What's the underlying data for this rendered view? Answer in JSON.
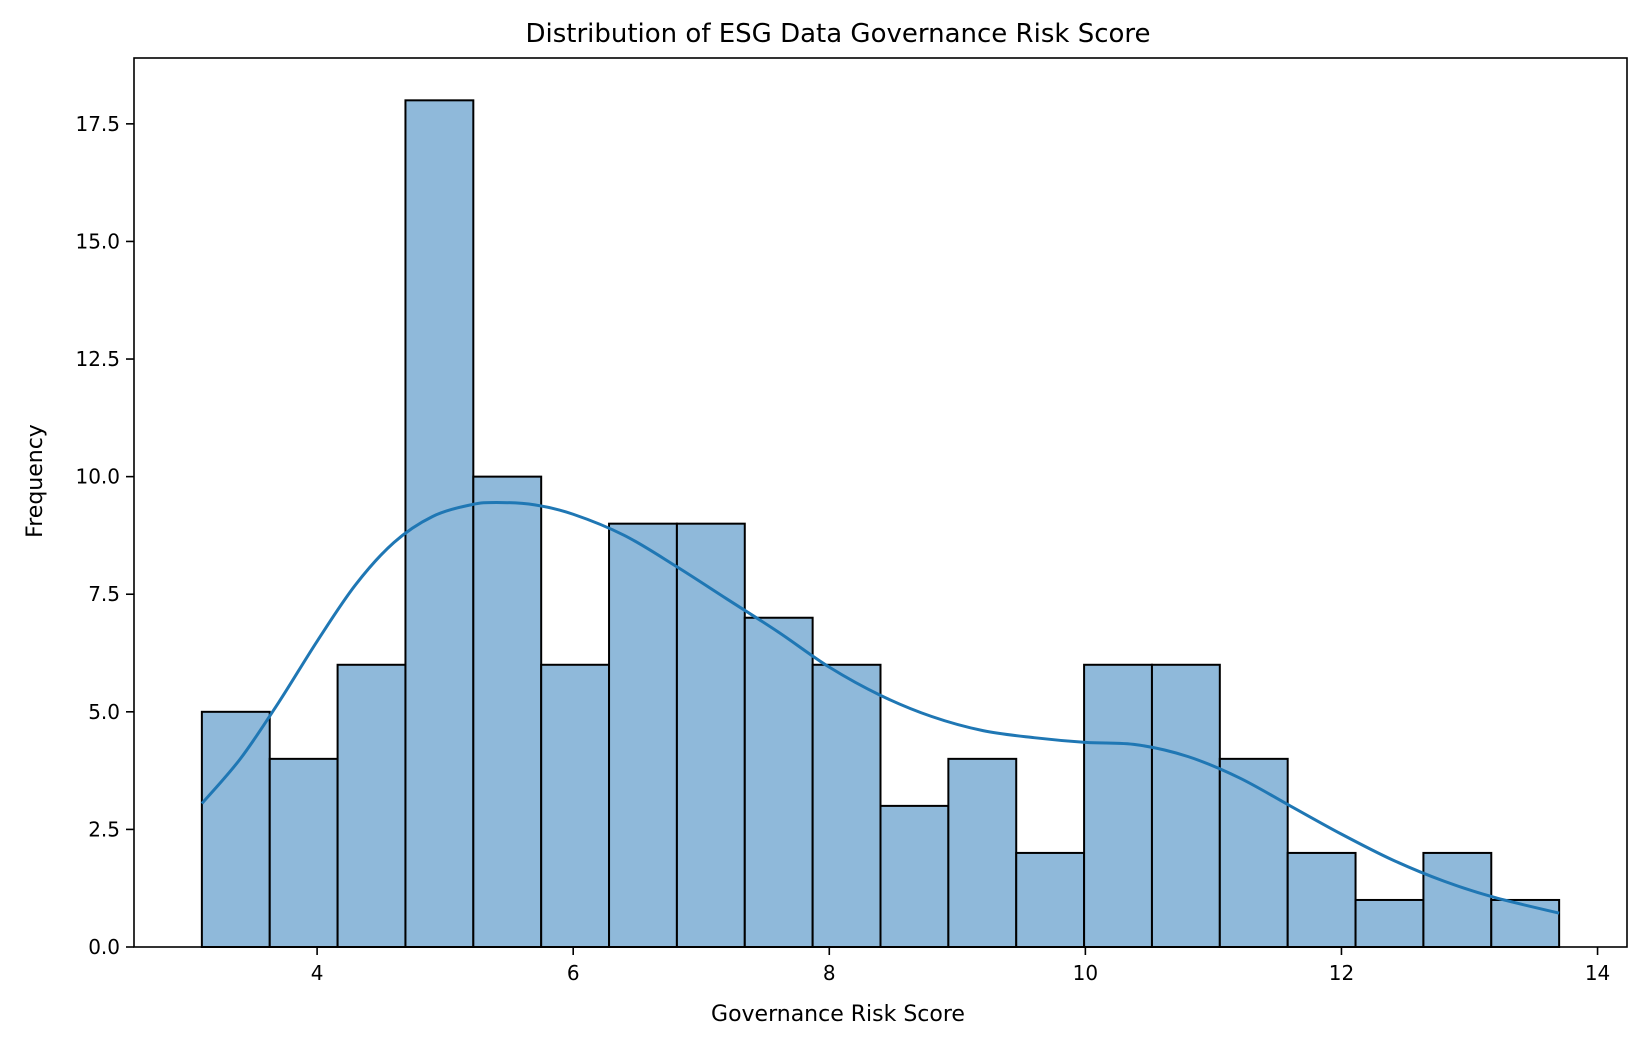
{
  "chart_data": {
    "type": "bar",
    "title": "Distribution of ESG Data Governance Risk Score",
    "xlabel": "Governance Risk Score",
    "ylabel": "Frequency",
    "xlim": [
      2.57,
      14.23
    ],
    "ylim": [
      0,
      18.9
    ],
    "xticks": [
      4,
      6,
      8,
      10,
      12,
      14
    ],
    "yticks": [
      0.0,
      2.5,
      5.0,
      7.5,
      10.0,
      12.5,
      15.0,
      17.5
    ],
    "xtick_labels": [
      "4",
      "6",
      "8",
      "10",
      "12",
      "14"
    ],
    "ytick_labels": [
      "0.0",
      "2.5",
      "5.0",
      "7.5",
      "10.0",
      "12.5",
      "15.0",
      "17.5"
    ],
    "grid": false,
    "bins": [
      {
        "start": 3.1,
        "end": 3.63,
        "count": 5
      },
      {
        "start": 3.63,
        "end": 4.16,
        "count": 4
      },
      {
        "start": 4.16,
        "end": 4.69,
        "count": 6
      },
      {
        "start": 4.69,
        "end": 5.22,
        "count": 18
      },
      {
        "start": 5.22,
        "end": 5.75,
        "count": 10
      },
      {
        "start": 5.75,
        "end": 6.28,
        "count": 6
      },
      {
        "start": 6.28,
        "end": 6.81,
        "count": 9
      },
      {
        "start": 6.81,
        "end": 7.34,
        "count": 9
      },
      {
        "start": 7.34,
        "end": 7.87,
        "count": 7
      },
      {
        "start": 7.87,
        "end": 8.4,
        "count": 6
      },
      {
        "start": 8.4,
        "end": 8.93,
        "count": 3
      },
      {
        "start": 8.93,
        "end": 9.46,
        "count": 4
      },
      {
        "start": 9.46,
        "end": 9.99,
        "count": 2
      },
      {
        "start": 9.99,
        "end": 10.52,
        "count": 6
      },
      {
        "start": 10.52,
        "end": 11.05,
        "count": 6
      },
      {
        "start": 11.05,
        "end": 11.58,
        "count": 4
      },
      {
        "start": 11.58,
        "end": 12.11,
        "count": 2
      },
      {
        "start": 12.11,
        "end": 12.64,
        "count": 1
      },
      {
        "start": 12.64,
        "end": 13.17,
        "count": 2
      },
      {
        "start": 13.17,
        "end": 13.7,
        "count": 1
      }
    ],
    "kde": {
      "x": [
        3.1,
        3.4,
        3.7,
        4.0,
        4.3,
        4.6,
        4.9,
        5.2,
        5.4,
        5.7,
        6.0,
        6.4,
        6.8,
        7.2,
        7.6,
        8.0,
        8.4,
        8.8,
        9.2,
        9.6,
        10.0,
        10.4,
        10.8,
        11.2,
        11.6,
        12.0,
        12.4,
        12.8,
        13.2,
        13.7
      ],
      "y": [
        3.05,
        4.0,
        5.2,
        6.5,
        7.7,
        8.6,
        9.15,
        9.4,
        9.45,
        9.4,
        9.2,
        8.75,
        8.1,
        7.4,
        6.7,
        5.95,
        5.35,
        4.9,
        4.6,
        4.45,
        4.35,
        4.3,
        4.05,
        3.6,
        3.0,
        2.4,
        1.85,
        1.4,
        1.05,
        0.72
      ]
    },
    "colors": {
      "bar_fill": "#8fb9da",
      "bar_edge": "#000000",
      "kde_line": "#1f77b4"
    }
  }
}
